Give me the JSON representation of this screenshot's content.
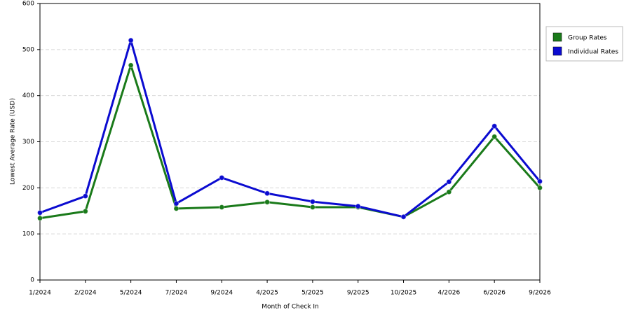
{
  "chart_data": {
    "type": "line",
    "x_label": "Month of Check In",
    "y_label": "Lowest Average Rate (USD)",
    "categories": [
      "1/2024",
      "2/2024",
      "5/2024",
      "7/2024",
      "9/2024",
      "4/2025",
      "5/2025",
      "9/2025",
      "10/2025",
      "4/2026",
      "6/2026",
      "9/2026"
    ],
    "series": [
      {
        "name": "Group Rates",
        "color": "#1a7a1a",
        "values": [
          134,
          149,
          466,
          155,
          158,
          169,
          158,
          158,
          137,
          191,
          311,
          200
        ]
      },
      {
        "name": "Individual Rates",
        "color": "#0b0bd0",
        "values": [
          146,
          182,
          520,
          166,
          222,
          188,
          170,
          160,
          137,
          213,
          334,
          214
        ]
      }
    ],
    "ylim": [
      0,
      600
    ],
    "yticks": [
      0,
      100,
      200,
      300,
      400,
      500,
      600
    ],
    "grid": true,
    "legend": "right"
  }
}
